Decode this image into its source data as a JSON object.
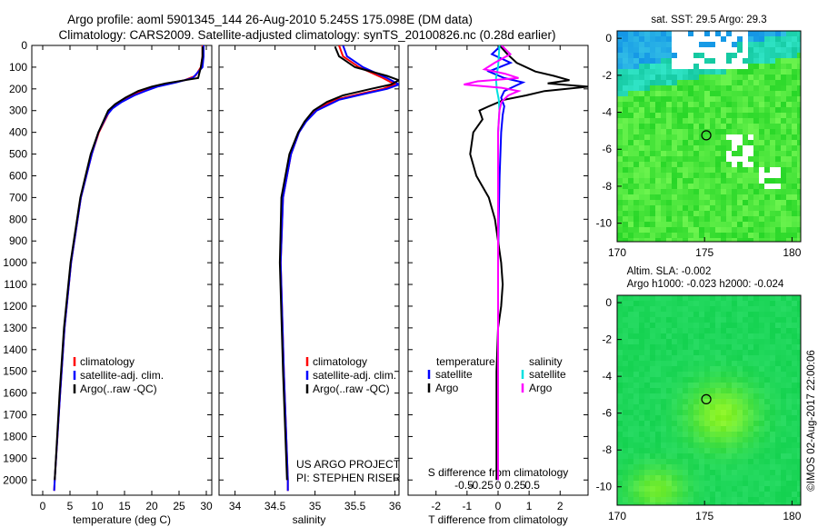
{
  "header": {
    "line1": "Argo profile: aoml 5901345_144 26-Aug-2010 5.245S 175.098E (DM data)",
    "line2": "Climatology: CARS2009. Satellite-adjusted climatology: synTS_20100826.nc (0.28d earlier)"
  },
  "side_label": "©IMOS 02-Aug-2017 22:00:06",
  "chart_data": [
    {
      "id": "temperature",
      "type": "line",
      "xlabel": "temperature (deg C)",
      "ylabel": "",
      "xlim": [
        -2,
        31
      ],
      "ylim": [
        2070,
        0
      ],
      "xticks": [
        0,
        5,
        10,
        15,
        20,
        25,
        30
      ],
      "yticks": [
        0,
        100,
        200,
        300,
        400,
        500,
        600,
        700,
        800,
        900,
        1000,
        1100,
        1200,
        1300,
        1400,
        1500,
        1600,
        1700,
        1800,
        1900,
        2000
      ],
      "legend": [
        "climatology",
        "satellite-adj. clim.",
        "Argo(..raw -QC)"
      ],
      "series": [
        {
          "name": "climatology",
          "color": "#ff0000",
          "depth": [
            0,
            50,
            100,
            140,
            160,
            180,
            200,
            220,
            250,
            280,
            300,
            400,
            500,
            700,
            1000,
            1300,
            1600,
            2000,
            2050
          ],
          "values": [
            29.3,
            29.3,
            29.0,
            28.0,
            26.0,
            22.0,
            19.5,
            17.0,
            14.8,
            13.2,
            12.3,
            10.3,
            9.0,
            7.0,
            5.2,
            4.0,
            3.2,
            2.2,
            2.1
          ]
        },
        {
          "name": "satellite-adj. clim.",
          "color": "#0000ff",
          "depth": [
            0,
            50,
            100,
            150,
            170,
            190,
            210,
            230,
            260,
            290,
            320,
            400,
            500,
            700,
            1000,
            1300,
            1600,
            2000,
            2050
          ],
          "values": [
            29.5,
            29.5,
            29.3,
            27.5,
            24.5,
            21.0,
            18.8,
            16.8,
            14.5,
            12.8,
            11.8,
            10.2,
            9.0,
            7.0,
            5.2,
            4.0,
            3.2,
            2.2,
            2.1
          ]
        },
        {
          "name": "Argo(..raw -QC)",
          "color": "#000000",
          "depth": [
            5,
            50,
            100,
            150,
            160,
            175,
            190,
            210,
            240,
            270,
            300,
            400,
            500,
            700,
            1000,
            1300,
            1600,
            2000
          ],
          "values": [
            29.3,
            29.3,
            29.0,
            28.5,
            26.0,
            22.5,
            20.0,
            17.5,
            15.2,
            13.3,
            12.0,
            10.2,
            8.8,
            6.9,
            5.1,
            3.9,
            3.1,
            2.2
          ]
        }
      ]
    },
    {
      "id": "salinity",
      "type": "line",
      "xlabel": "salinity",
      "xlim": [
        33.8,
        36.05
      ],
      "ylim": [
        2070,
        0
      ],
      "xticks": [
        34,
        34.5,
        35,
        35.5,
        36
      ],
      "legend": [
        "climatology",
        "satellite-adj. clim.",
        "Argo(..raw -QC)"
      ],
      "annotation": [
        "US ARGO PROJECT",
        "PI: STEPHEN RISER"
      ],
      "series": [
        {
          "name": "climatology",
          "color": "#ff0000",
          "depth": [
            0,
            50,
            100,
            150,
            180,
            200,
            220,
            250,
            300,
            350,
            400,
            500,
            700,
            1000,
            1500,
            2000,
            2050
          ],
          "values": [
            35.3,
            35.35,
            35.55,
            35.85,
            36.0,
            35.85,
            35.6,
            35.25,
            35.0,
            34.88,
            34.8,
            34.7,
            34.6,
            34.57,
            34.61,
            34.66,
            34.66
          ]
        },
        {
          "name": "satellite-adj. clim.",
          "color": "#0000ff",
          "depth": [
            0,
            50,
            100,
            150,
            180,
            200,
            220,
            250,
            300,
            350,
            400,
            500,
            700,
            1000,
            1500,
            2000,
            2050
          ],
          "values": [
            35.35,
            35.4,
            35.6,
            35.9,
            36.05,
            35.9,
            35.65,
            35.3,
            35.02,
            34.89,
            34.8,
            34.7,
            34.6,
            34.57,
            34.61,
            34.66,
            34.66
          ]
        },
        {
          "name": "Argo(..raw -QC)",
          "color": "#000000",
          "depth": [
            5,
            50,
            100,
            140,
            160,
            180,
            200,
            230,
            260,
            300,
            350,
            400,
            500,
            700,
            1000,
            1500,
            2000
          ],
          "values": [
            35.25,
            35.3,
            35.5,
            35.9,
            36.05,
            35.95,
            35.7,
            35.35,
            35.15,
            34.98,
            34.87,
            34.79,
            34.68,
            34.58,
            34.56,
            34.6,
            34.65
          ]
        }
      ]
    },
    {
      "id": "differences",
      "type": "line",
      "xlabel": "T difference from climatology",
      "xlabel_top": "S difference from climatology",
      "xlim": [
        -2.9,
        2.9
      ],
      "ylim": [
        2070,
        0
      ],
      "xticks": [
        -2,
        -1,
        0,
        1,
        2
      ],
      "xticks_top": [
        -0.5,
        -0.25,
        0,
        0.25,
        0.5
      ],
      "xticks_top_labels": [
        "-0.5",
        "-0.25",
        "0",
        "0.25",
        "0.5"
      ],
      "legend_headers": [
        "temperature",
        "salinity"
      ],
      "legend": [
        "satellite",
        "Argo",
        "satellite",
        "Argo"
      ],
      "series": [
        {
          "name": "T satellite",
          "color": "#0000ff",
          "depth": [
            0,
            40,
            80,
            120,
            150,
            170,
            190,
            210,
            240,
            280,
            320,
            400,
            600,
            800,
            1000,
            1400,
            2000
          ],
          "values": [
            0.1,
            -0.2,
            0.4,
            -0.3,
            0.2,
            0.8,
            0.5,
            0.2,
            0.1,
            0.2,
            0.15,
            0.1,
            0.05,
            0.02,
            0,
            0,
            0
          ]
        },
        {
          "name": "T Argo",
          "color": "#000000",
          "depth": [
            0,
            40,
            80,
            120,
            140,
            160,
            175,
            190,
            210,
            230,
            250,
            280,
            300,
            340,
            400,
            500,
            600,
            700,
            800,
            1000,
            1100,
            1200,
            1300,
            1500,
            2000
          ],
          "values": [
            0.05,
            0.3,
            0.6,
            1.2,
            1.8,
            2.3,
            1.6,
            2.9,
            1.5,
            0.9,
            0.2,
            -0.3,
            -0.6,
            -0.5,
            -0.8,
            -0.9,
            -0.7,
            -0.3,
            -0.1,
            0.1,
            0.15,
            0.1,
            0,
            -0.05,
            -0.05
          ]
        },
        {
          "name": "S satellite",
          "color": "#00e0e0",
          "depth": [
            0,
            50,
            100,
            150,
            200,
            250,
            300,
            400,
            500,
            700,
            1000,
            1500,
            2000
          ],
          "values": [
            0.02,
            0.01,
            0.0,
            -0.03,
            -0.02,
            0.01,
            0.02,
            0.0,
            0.0,
            0.0,
            0.0,
            0.0,
            0.0
          ]
        },
        {
          "name": "S Argo",
          "color": "#ff00ff",
          "depth": [
            0,
            40,
            80,
            110,
            130,
            150,
            165,
            180,
            195,
            210,
            230,
            260,
            300,
            400,
            500,
            800,
            1000,
            1500,
            2000
          ],
          "values": [
            0.05,
            0.18,
            -0.05,
            -0.2,
            0.1,
            0.3,
            -0.3,
            -0.5,
            0.05,
            0.3,
            0.15,
            0.05,
            0.02,
            0.0,
            0.0,
            0.0,
            0.0,
            0.0,
            0.0
          ]
        }
      ]
    },
    {
      "id": "sst_map",
      "type": "heatmap",
      "title": "sat. SST: 29.5 Argo: 29.3",
      "xlim": [
        170,
        180.5
      ],
      "ylim": [
        -11,
        0.4
      ],
      "xticks": [
        170,
        175,
        180
      ],
      "yticks": [
        0,
        -2,
        -4,
        -6,
        -8,
        -10
      ],
      "marker": {
        "lon": 175.098,
        "lat": -5.245
      }
    },
    {
      "id": "sla_map",
      "type": "heatmap",
      "title_lines": [
        "Altim. SLA: -0.002",
        "Argo h1000: -0.023 h2000: -0.024"
      ],
      "xlim": [
        170,
        180.5
      ],
      "ylim": [
        -11,
        0.4
      ],
      "xticks": [
        170,
        175,
        180
      ],
      "yticks": [
        0,
        -2,
        -4,
        -6,
        -8,
        -10
      ],
      "marker": {
        "lon": 175.098,
        "lat": -5.245
      }
    }
  ]
}
